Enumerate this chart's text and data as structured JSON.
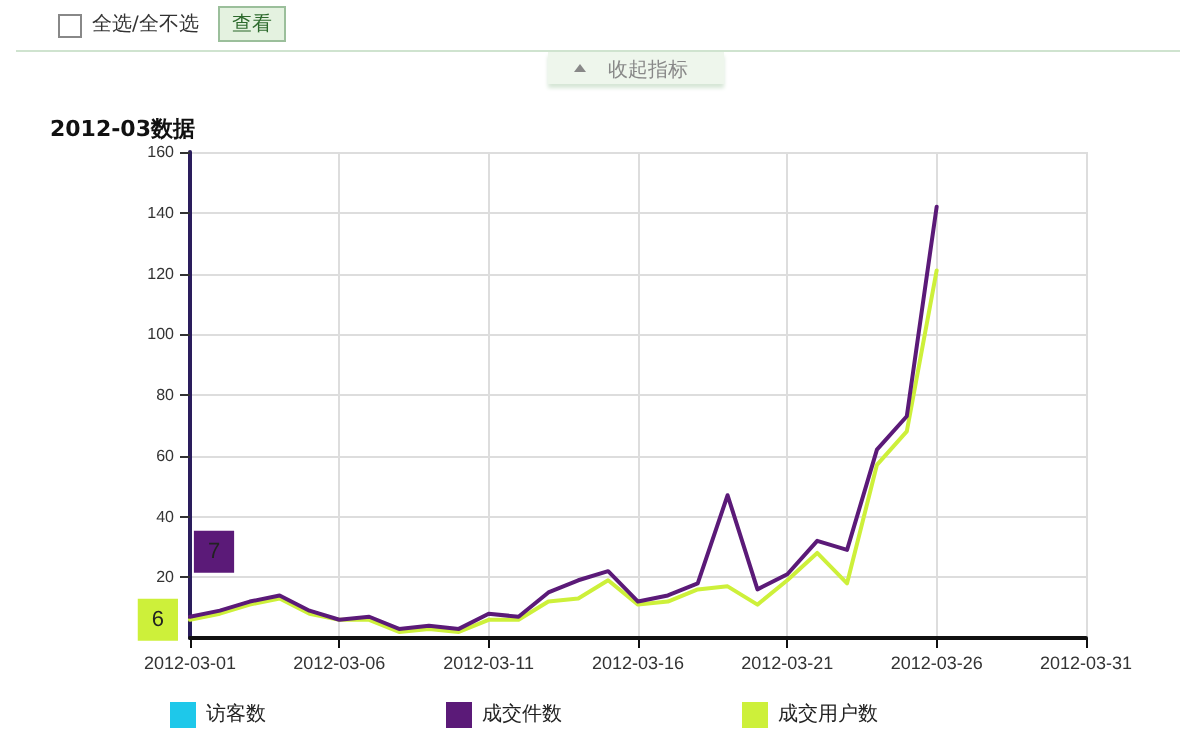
{
  "chart_data": {
    "type": "line",
    "title": "2012-03数据",
    "annotations": [
      "全选/全不选",
      "查看",
      "收起指标"
    ],
    "x": [
      "2012-03-01",
      "2012-03-02",
      "2012-03-03",
      "2012-03-04",
      "2012-03-05",
      "2012-03-06",
      "2012-03-07",
      "2012-03-08",
      "2012-03-09",
      "2012-03-10",
      "2012-03-11",
      "2012-03-12",
      "2012-03-13",
      "2012-03-14",
      "2012-03-15",
      "2012-03-16",
      "2012-03-17",
      "2012-03-18",
      "2012-03-19",
      "2012-03-20",
      "2012-03-21",
      "2012-03-22",
      "2012-03-23",
      "2012-03-24",
      "2012-03-25",
      "2012-03-26"
    ],
    "series": [
      {
        "name": "访客数",
        "color": "#1ec8ea",
        "values": [
          null,
          null,
          null,
          null,
          null,
          null,
          null,
          null,
          null,
          null,
          null,
          null,
          null,
          null,
          null,
          null,
          null,
          null,
          null,
          null,
          null,
          null,
          null,
          null,
          null,
          null
        ]
      },
      {
        "name": "成交件数",
        "color": "#5b1a78",
        "values": [
          7,
          9,
          12,
          14,
          9,
          6,
          7,
          3,
          4,
          3,
          8,
          7,
          15,
          19,
          22,
          12,
          14,
          18,
          47,
          16,
          21,
          32,
          29,
          62,
          73,
          142
        ],
        "value_labels": [
          "7",
          null,
          null,
          null,
          null,
          null,
          null,
          null,
          null,
          null,
          null,
          null,
          null,
          null,
          null,
          null,
          null,
          null,
          null,
          null,
          null,
          null,
          null,
          null,
          null,
          null
        ]
      },
      {
        "name": "成交用户数",
        "color": "#cdf03a",
        "values": [
          6,
          8,
          11,
          13,
          8,
          6,
          6,
          2,
          3,
          2,
          6,
          6,
          12,
          13,
          19,
          11,
          12,
          16,
          17,
          11,
          19,
          28,
          18,
          57,
          68,
          121
        ],
        "value_labels": [
          "6",
          null,
          null,
          null,
          null,
          null,
          null,
          null,
          null,
          null,
          null,
          null,
          null,
          null,
          null,
          null,
          null,
          null,
          null,
          null,
          null,
          null,
          null,
          null,
          null,
          null
        ]
      }
    ],
    "xlim": [
      "2012-03-01",
      "2012-03-31"
    ],
    "xticks": [
      "2012-03-01",
      "2012-03-06",
      "2012-03-11",
      "2012-03-16",
      "2012-03-21",
      "2012-03-26",
      "2012-03-31"
    ],
    "ylim": [
      0,
      160
    ],
    "yticks": [
      20,
      40,
      60,
      80,
      100,
      120,
      140,
      160
    ],
    "grid": true,
    "legend": "bottom",
    "marker": "none",
    "line_style": "solid"
  }
}
